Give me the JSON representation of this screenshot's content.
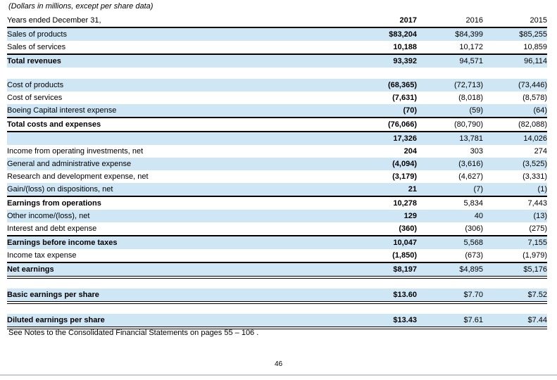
{
  "document": {
    "subtitle": "(Dollars in millions, except per share data)",
    "footnote": "See Notes to the Consolidated Financial Statements on pages 55 – 106 .",
    "page_number": "46"
  },
  "table": {
    "header": {
      "label": "Years ended December 31,",
      "years": [
        "2017",
        "2016",
        "2015"
      ]
    },
    "rows": [
      {
        "label": "Sales of products",
        "values": [
          "$83,204",
          "$84,399",
          "$85,255"
        ],
        "shaded": true
      },
      {
        "label": "Sales of services",
        "values": [
          "10,188",
          "10,172",
          "10,859"
        ]
      },
      {
        "label": "Total revenues",
        "values": [
          "93,392",
          "94,571",
          "96,114"
        ],
        "shaded": true,
        "bold": true,
        "border_top": true
      },
      {
        "spacer": true
      },
      {
        "label": "Cost of products",
        "values": [
          "(68,365)",
          "(72,713)",
          "(73,446)"
        ],
        "shaded": true
      },
      {
        "label": "Cost of services",
        "values": [
          "(7,631)",
          "(8,018)",
          "(8,578)"
        ]
      },
      {
        "label": "Boeing Capital interest expense",
        "values": [
          "(70)",
          "(59)",
          "(64)"
        ],
        "shaded": true
      },
      {
        "label": "Total costs and expenses",
        "values": [
          "(76,066)",
          "(80,790)",
          "(82,088)"
        ],
        "bold": true,
        "border_top": true,
        "border_bottom": true
      },
      {
        "label": "",
        "values": [
          "17,326",
          "13,781",
          "14,026"
        ],
        "shaded": true
      },
      {
        "label": "Income from operating investments, net",
        "values": [
          "204",
          "303",
          "274"
        ]
      },
      {
        "label": "General and administrative expense",
        "values": [
          "(4,094)",
          "(3,616)",
          "(3,525)"
        ],
        "shaded": true
      },
      {
        "label": "Research and development expense, net",
        "values": [
          "(3,179)",
          "(4,627)",
          "(3,331)"
        ]
      },
      {
        "label": "Gain/(loss) on dispositions, net",
        "values": [
          "21",
          "(7)",
          "(1)"
        ],
        "shaded": true
      },
      {
        "label": "Earnings from operations",
        "values": [
          "10,278",
          "5,834",
          "7,443"
        ],
        "bold": true,
        "border_top": true
      },
      {
        "label": "Other income/(loss), net",
        "values": [
          "129",
          "40",
          "(13)"
        ],
        "shaded": true
      },
      {
        "label": "Interest and debt expense",
        "values": [
          "(360)",
          "(306)",
          "(275)"
        ]
      },
      {
        "label": "Earnings before income taxes",
        "values": [
          "10,047",
          "5,568",
          "7,155"
        ],
        "shaded": true,
        "bold": true,
        "border_top": true
      },
      {
        "label": "Income tax expense",
        "values": [
          "(1,850)",
          "(673)",
          "(1,979)"
        ]
      },
      {
        "label": "Net earnings",
        "values": [
          "$8,197",
          "$4,895",
          "$5,176"
        ],
        "shaded": true,
        "bold": true,
        "border_top": true,
        "double_bottom": true
      },
      {
        "spacer": true
      },
      {
        "label": "Basic earnings per share",
        "values": [
          "$13.60",
          "$7.70",
          "$7.52"
        ],
        "shaded": true,
        "bold": true,
        "double_bottom": true
      },
      {
        "spacer": true
      },
      {
        "label": "Diluted earnings per share",
        "values": [
          "$13.43",
          "$7.61",
          "$7.44"
        ],
        "shaded": true,
        "bold": true,
        "double_bottom": true
      }
    ]
  },
  "colors": {
    "row_shade": "#cfe7f5",
    "rule": "#000000",
    "page_divider": "#c8cdd2"
  }
}
